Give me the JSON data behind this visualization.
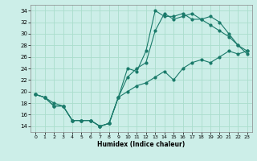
{
  "xlabel": "Humidex (Indice chaleur)",
  "bg_color": "#cceee8",
  "grid_color": "#aaddcc",
  "line_color": "#1a7a6a",
  "xlim": [
    -0.5,
    23.5
  ],
  "ylim": [
    13,
    35
  ],
  "xticks": [
    0,
    1,
    2,
    3,
    4,
    5,
    6,
    7,
    8,
    9,
    10,
    11,
    12,
    13,
    14,
    15,
    16,
    17,
    18,
    19,
    20,
    21,
    22,
    23
  ],
  "yticks": [
    14,
    16,
    18,
    20,
    22,
    24,
    26,
    28,
    30,
    32,
    34
  ],
  "line1_x": [
    0,
    1,
    2,
    3,
    4,
    5,
    6,
    7,
    8,
    9,
    10,
    11,
    12,
    13,
    14,
    15,
    16,
    17,
    18,
    19,
    20,
    21,
    22,
    23
  ],
  "line1_y": [
    19.5,
    19.0,
    17.5,
    17.5,
    15.0,
    15.0,
    15.0,
    14.0,
    14.5,
    19.0,
    24.0,
    23.5,
    27.0,
    34.0,
    33.0,
    33.0,
    33.5,
    32.5,
    32.5,
    31.5,
    30.5,
    29.5,
    28.0,
    26.5
  ],
  "line2_x": [
    0,
    1,
    2,
    3,
    4,
    5,
    6,
    7,
    8,
    9,
    10,
    11,
    12,
    13,
    14,
    15,
    16,
    17,
    18,
    19,
    20,
    21,
    22,
    23
  ],
  "line2_y": [
    19.5,
    19.0,
    18.0,
    17.5,
    15.0,
    15.0,
    15.0,
    14.0,
    14.5,
    19.0,
    22.5,
    24.0,
    25.0,
    30.5,
    33.5,
    32.5,
    33.0,
    33.5,
    32.5,
    33.0,
    32.0,
    30.0,
    28.0,
    27.0
  ],
  "line3_x": [
    0,
    1,
    2,
    3,
    4,
    5,
    6,
    7,
    8,
    9,
    10,
    11,
    12,
    13,
    14,
    15,
    16,
    17,
    18,
    19,
    20,
    21,
    22,
    23
  ],
  "line3_y": [
    19.5,
    19.0,
    17.5,
    17.5,
    15.0,
    15.0,
    15.0,
    14.0,
    14.5,
    19.0,
    20.0,
    21.0,
    21.5,
    22.5,
    23.5,
    22.0,
    24.0,
    25.0,
    25.5,
    25.0,
    26.0,
    27.0,
    26.5,
    27.0
  ]
}
